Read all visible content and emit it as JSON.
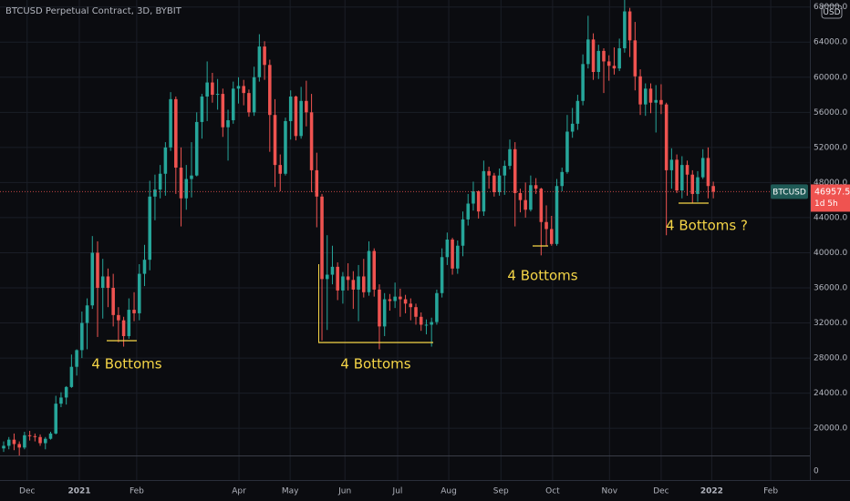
{
  "chart_data": {
    "type": "candlestick",
    "title": "BTCUSD Perpetual Contract, 3D, BYBIT",
    "currency": "USD",
    "symbol": "BTCUSD",
    "countdown": "1d 5h",
    "up_color": "#26a69a",
    "down_color": "#ef5350",
    "annotations": [
      "4 Bottoms",
      "4 Bottoms",
      "4 Bottoms",
      "4 Bottoms ?"
    ],
    "grid": true,
    "xlim": [
      -0.7,
      154.5
    ],
    "ylim": [
      16900,
      68800
    ],
    "yticks": [
      {
        "value": 20000,
        "label": "20000.0"
      },
      {
        "value": 24000,
        "label": "24000.0"
      },
      {
        "value": 28000,
        "label": "28000.0"
      },
      {
        "value": 32000,
        "label": "32000.0"
      },
      {
        "value": 36000,
        "label": "36000.0"
      },
      {
        "value": 40000,
        "label": "40000.0"
      },
      {
        "value": 44000,
        "label": "44000.0"
      },
      {
        "value": 48000,
        "label": "48000.0"
      },
      {
        "value": 52000,
        "label": "52000.0"
      },
      {
        "value": 56000,
        "label": "56000.0"
      },
      {
        "value": 60000,
        "label": "60000.0"
      },
      {
        "value": 64000,
        "label": "64000.0"
      },
      {
        "value": 68000,
        "label": "68000.0"
      }
    ],
    "pane2_yticks": [
      0
    ],
    "xticks": [
      {
        "value": 4.5,
        "label": "Dec"
      },
      {
        "value": 14.5,
        "label": "2021"
      },
      {
        "value": 25.5,
        "label": "Feb"
      },
      {
        "value": 45.1,
        "label": "Apr"
      },
      {
        "value": 54.9,
        "label": "May"
      },
      {
        "value": 65.4,
        "label": "Jun"
      },
      {
        "value": 75.5,
        "label": "Jul"
      },
      {
        "value": 85.3,
        "label": "Aug"
      },
      {
        "value": 95.3,
        "label": "Sep"
      },
      {
        "value": 105.2,
        "label": "Oct"
      },
      {
        "value": 116.1,
        "label": "Nov"
      },
      {
        "value": 126.0,
        "label": "Dec"
      },
      {
        "value": 135.7,
        "label": "2022"
      },
      {
        "value": 147.0,
        "label": "Feb"
      }
    ],
    "candles": {
      "open": [
        17700,
        18000,
        18700,
        18200,
        17800,
        19200,
        19100,
        19000,
        18300,
        18800,
        19400,
        22800,
        23500,
        24700,
        27000,
        28900,
        32000,
        34000,
        40000,
        36000,
        37300,
        36000,
        32900,
        32300,
        30500,
        33500,
        33100,
        37600,
        39200,
        46400,
        47200,
        49000,
        52000,
        57500,
        49700,
        46200,
        48400,
        48800,
        54900,
        57800,
        59400,
        58000,
        58100,
        54300,
        55100,
        58700,
        59000,
        58200,
        56000,
        60000,
        63500,
        61400,
        55700,
        50000,
        49000,
        55000,
        57800,
        53300,
        57300,
        56000,
        49400,
        46400,
        37000,
        37500,
        38400,
        35700,
        37300,
        36900,
        35800,
        37300,
        35500,
        40200,
        35800,
        31600,
        34700,
        34500,
        35000,
        34700,
        34200,
        33800,
        32700,
        31800,
        31800,
        32100,
        35400,
        39500,
        41500,
        38200,
        40800,
        43800,
        45600,
        47000,
        44700,
        49300,
        48800,
        46900,
        48800,
        49900,
        51800,
        46800,
        46000,
        44900,
        47700,
        47300,
        43500,
        42700,
        41000,
        47600,
        49200,
        53800,
        54700,
        57300,
        61500,
        64300,
        60600,
        63000,
        61800,
        61300,
        61000,
        63300,
        67500,
        64200,
        60100,
        56900,
        58700,
        57100,
        57400,
        56900,
        49400,
        50600,
        47100,
        50000,
        48900,
        46700,
        48600,
        50800,
        47600
      ],
      "high": [
        18500,
        19000,
        19400,
        18500,
        19600,
        19700,
        19400,
        19300,
        19000,
        19600,
        23700,
        24100,
        24800,
        28400,
        29000,
        33300,
        34800,
        41900,
        41300,
        39300,
        38200,
        37600,
        33800,
        32700,
        34800,
        35500,
        38700,
        40900,
        48200,
        48900,
        50000,
        52600,
        58300,
        57800,
        52000,
        50000,
        52600,
        56000,
        58100,
        61800,
        60500,
        59800,
        58700,
        56300,
        59500,
        60000,
        59700,
        58600,
        61200,
        64900,
        64100,
        62000,
        57500,
        51200,
        55400,
        58500,
        57900,
        58900,
        59600,
        58100,
        51400,
        46700,
        42000,
        40800,
        38900,
        37800,
        38800,
        37900,
        38600,
        39300,
        41300,
        40500,
        36400,
        35400,
        35300,
        36600,
        35900,
        35200,
        34800,
        34200,
        33200,
        32400,
        32600,
        35800,
        40500,
        42300,
        41700,
        41400,
        44700,
        46700,
        48100,
        47100,
        50500,
        49800,
        49100,
        49600,
        50500,
        52900,
        52600,
        47300,
        48000,
        48800,
        48500,
        47400,
        45400,
        44200,
        48400,
        49700,
        55700,
        56500,
        58000,
        62600,
        67000,
        65000,
        63700,
        63300,
        62500,
        63400,
        64400,
        69000,
        67900,
        66300,
        60900,
        59300,
        59300,
        59100,
        59200,
        57100,
        51900,
        51200,
        51000,
        50500,
        49400,
        49300,
        51800,
        52000,
        48100
      ],
      "low": [
        17300,
        17600,
        17500,
        16900,
        17600,
        18600,
        18500,
        18000,
        17600,
        18700,
        19300,
        22400,
        22700,
        24600,
        26000,
        28000,
        29000,
        33600,
        30400,
        32500,
        33800,
        31600,
        29800,
        29300,
        30200,
        32200,
        32300,
        36200,
        38000,
        43700,
        46200,
        46500,
        51600,
        46700,
        43000,
        44900,
        46300,
        48700,
        53000,
        55000,
        57100,
        56300,
        53200,
        50500,
        54700,
        57000,
        56800,
        55500,
        55600,
        59500,
        59700,
        51500,
        47500,
        47000,
        48800,
        52900,
        52800,
        53000,
        54400,
        46900,
        42900,
        30000,
        31200,
        36400,
        34600,
        34200,
        35700,
        33600,
        32200,
        34900,
        35100,
        35000,
        29000,
        30500,
        33400,
        33700,
        32700,
        33100,
        32300,
        31800,
        31100,
        30700,
        29300,
        31800,
        34900,
        38600,
        37500,
        37600,
        39600,
        43100,
        44800,
        43900,
        44200,
        47300,
        46400,
        46500,
        46600,
        49500,
        43000,
        44600,
        44000,
        44700,
        46700,
        39700,
        40800,
        40800,
        40800,
        47000,
        49000,
        53100,
        54000,
        56800,
        61000,
        59700,
        59800,
        58200,
        59600,
        60300,
        60700,
        62800,
        62300,
        58500,
        55700,
        55600,
        55900,
        53700,
        55800,
        42000,
        47300,
        46800,
        46200,
        46500,
        45600,
        45800,
        48400,
        46200,
        46200
      ],
      "close": [
        18000,
        18700,
        18200,
        17800,
        19200,
        19100,
        19000,
        18300,
        18800,
        19400,
        22800,
        23500,
        24700,
        27000,
        28900,
        32000,
        34000,
        40000,
        36000,
        37300,
        36000,
        32900,
        32300,
        30500,
        33500,
        33100,
        37600,
        39200,
        46400,
        47200,
        49000,
        52000,
        57500,
        49700,
        46200,
        48400,
        48800,
        54900,
        57800,
        59400,
        58000,
        58100,
        54300,
        55100,
        58700,
        59000,
        58200,
        56000,
        60000,
        63500,
        61400,
        55700,
        50000,
        49000,
        55000,
        57800,
        53300,
        57300,
        56000,
        49400,
        46400,
        37000,
        37500,
        38400,
        35700,
        37300,
        36900,
        35800,
        37300,
        35500,
        40200,
        35800,
        31600,
        34700,
        34500,
        35000,
        34700,
        34200,
        33800,
        32700,
        31800,
        31800,
        32100,
        35400,
        39500,
        41500,
        38200,
        40800,
        43800,
        45600,
        47000,
        44700,
        49300,
        48800,
        46900,
        48800,
        49900,
        51800,
        46800,
        46000,
        44900,
        47700,
        47300,
        43500,
        42700,
        41000,
        47600,
        49200,
        53800,
        54700,
        57300,
        61500,
        64300,
        60600,
        63000,
        61800,
        61300,
        61000,
        63300,
        67500,
        64200,
        60100,
        56900,
        58700,
        57100,
        57400,
        56900,
        49400,
        50600,
        47100,
        50000,
        48900,
        46700,
        48600,
        50800,
        47600,
        46957.5
      ]
    }
  }
}
